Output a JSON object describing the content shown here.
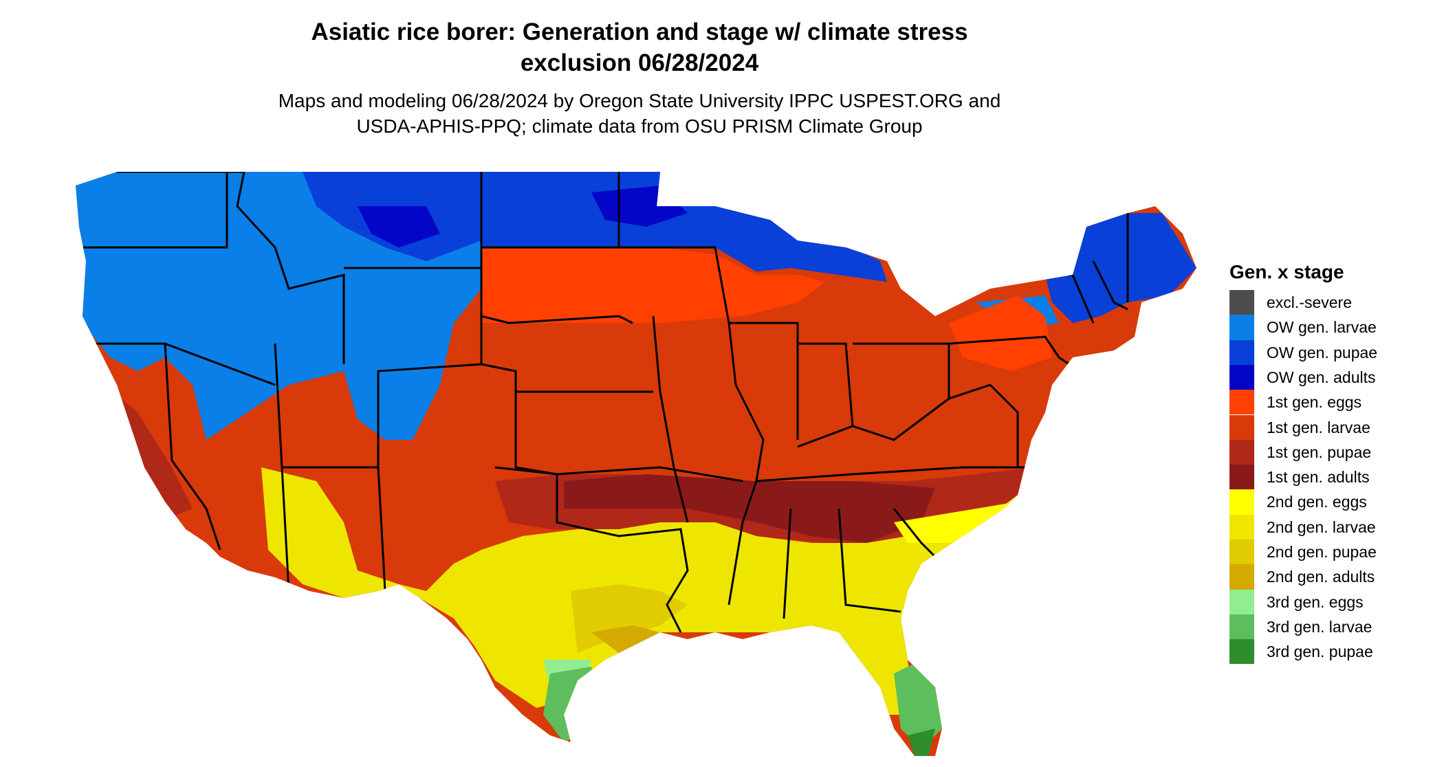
{
  "header": {
    "title_line1": "Asiatic rice borer: Generation and stage w/ climate stress",
    "title_line2": "exclusion 06/28/2024",
    "subtitle_line1": "Maps and modeling 06/28/2024 by Oregon State University IPPC USPEST.ORG and",
    "subtitle_line2": "USDA-APHIS-PPQ; climate data from OSU PRISM Climate Group"
  },
  "legend": {
    "title": "Gen. x stage",
    "items": [
      {
        "label": "excl.-severe",
        "color": "#4d4d4d"
      },
      {
        "label": "OW gen. larvae",
        "color": "#0a7fe8"
      },
      {
        "label": "OW gen. pupae",
        "color": "#0840d8"
      },
      {
        "label": "OW gen. adults",
        "color": "#0505c8"
      },
      {
        "label": "1st gen. eggs",
        "color": "#ff4000"
      },
      {
        "label": "1st gen. larvae",
        "color": "#d83a0a"
      },
      {
        "label": "1st gen. pupae",
        "color": "#b02818"
      },
      {
        "label": "1st gen. adults",
        "color": "#8a1a1a"
      },
      {
        "label": "2nd gen. eggs",
        "color": "#ffff00"
      },
      {
        "label": "2nd gen. larvae",
        "color": "#eee600"
      },
      {
        "label": "2nd gen. pupae",
        "color": "#e0cc00"
      },
      {
        "label": "2nd gen. adults",
        "color": "#d4aa00"
      },
      {
        "label": "3rd gen. eggs",
        "color": "#90ee90"
      },
      {
        "label": "3rd gen. larvae",
        "color": "#5ebe5e"
      },
      {
        "label": "3rd gen. pupae",
        "color": "#2e8e2e"
      }
    ]
  }
}
